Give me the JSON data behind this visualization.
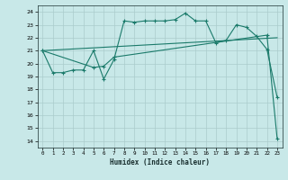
{
  "title": "",
  "xlabel": "Humidex (Indice chaleur)",
  "bg_color": "#c8e8e8",
  "grid_color": "#aacccc",
  "line_color": "#1a7a6a",
  "xlim": [
    -0.5,
    23.5
  ],
  "ylim": [
    13.5,
    24.5
  ],
  "yticks": [
    14,
    15,
    16,
    17,
    18,
    19,
    20,
    21,
    22,
    23,
    24
  ],
  "xticks": [
    0,
    1,
    2,
    3,
    4,
    5,
    6,
    7,
    8,
    9,
    10,
    11,
    12,
    13,
    14,
    15,
    16,
    17,
    18,
    19,
    20,
    21,
    22,
    23
  ],
  "series1": [
    [
      0,
      21.0
    ],
    [
      1,
      19.3
    ],
    [
      2,
      19.3
    ],
    [
      3,
      19.5
    ],
    [
      4,
      19.5
    ],
    [
      5,
      21.0
    ],
    [
      6,
      18.8
    ],
    [
      7,
      20.3
    ],
    [
      8,
      23.3
    ],
    [
      9,
      23.2
    ],
    [
      10,
      23.3
    ],
    [
      11,
      23.3
    ],
    [
      12,
      23.3
    ],
    [
      13,
      23.4
    ],
    [
      14,
      23.9
    ],
    [
      15,
      23.3
    ],
    [
      16,
      23.3
    ],
    [
      17,
      21.6
    ],
    [
      18,
      21.8
    ],
    [
      19,
      23.0
    ],
    [
      20,
      22.8
    ],
    [
      21,
      22.1
    ],
    [
      22,
      21.1
    ],
    [
      23,
      17.4
    ]
  ],
  "series2": [
    [
      0,
      21.0
    ],
    [
      5,
      19.7
    ],
    [
      6,
      19.8
    ],
    [
      7,
      20.5
    ],
    [
      22,
      22.2
    ],
    [
      23,
      14.2
    ]
  ],
  "series3": [
    [
      0,
      21.0
    ],
    [
      23,
      22.0
    ]
  ]
}
